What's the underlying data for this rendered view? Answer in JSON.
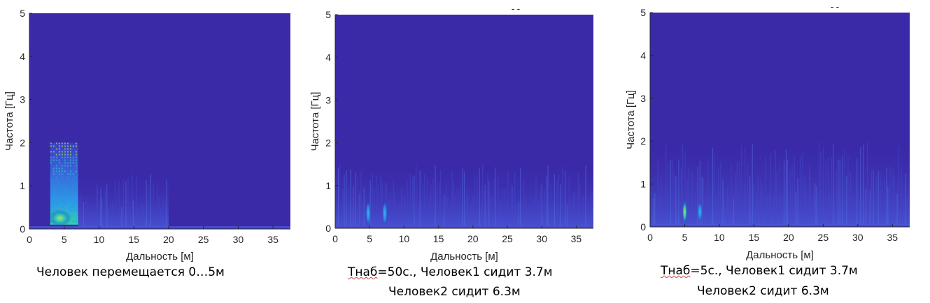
{
  "chart_data": [
    {
      "type": "heatmap",
      "xlabel": "Дальность [м]",
      "ylabel": "Частота [Гц]",
      "xlim": [
        0,
        37.5
      ],
      "ylim": [
        0,
        5
      ],
      "xticks": [
        "0",
        "5",
        "10",
        "15",
        "20",
        "25",
        "30",
        "35"
      ],
      "yticks": [
        "0",
        "1",
        "2",
        "3",
        "4",
        "5"
      ],
      "colors": {
        "background": "#3a2aa8",
        "low": "#3e3dc4",
        "mid": "#2a7ee6",
        "high": "#1ec6c8",
        "peak": "#b6e24a"
      },
      "hot_regions": [
        {
          "x_range": [
            3,
            7
          ],
          "y_range": [
            0.1,
            2.0
          ],
          "level": "high"
        },
        {
          "x_range": [
            7,
            20
          ],
          "y_range": [
            0.05,
            1.3
          ],
          "level": "low"
        }
      ]
    },
    {
      "type": "heatmap",
      "xlabel": "Дальность [м]",
      "ylabel": "Частота [Гц]",
      "xlim": [
        0,
        37.5
      ],
      "ylim": [
        0,
        5
      ],
      "xticks": [
        "0",
        "5",
        "10",
        "15",
        "20",
        "25",
        "30",
        "35"
      ],
      "yticks": [
        "0",
        "1",
        "2",
        "3",
        "4",
        "5"
      ],
      "top_mark": "- -",
      "colors": {
        "background": "#3a2aa8",
        "low": "#3e3dc4",
        "mid": "#2a7ee6",
        "high": "#1ec6c8",
        "peak": "#b6e24a"
      },
      "hot_regions": [
        {
          "x_range": [
            0,
            37.5
          ],
          "y_range": [
            0.05,
            1.5
          ],
          "level": "low"
        },
        {
          "x_range": [
            4.6,
            5.0
          ],
          "y_range": [
            0.1,
            0.7
          ],
          "level": "mid"
        },
        {
          "x_range": [
            7.0,
            7.4
          ],
          "y_range": [
            0.1,
            0.7
          ],
          "level": "mid"
        }
      ]
    },
    {
      "type": "heatmap",
      "xlabel": "Дальность [м]",
      "ylabel": "Частота [Гц]",
      "xlim": [
        0,
        37.5
      ],
      "ylim": [
        0,
        5
      ],
      "xticks": [
        "0",
        "5",
        "10",
        "15",
        "20",
        "25",
        "30",
        "35"
      ],
      "yticks": [
        "0",
        "1",
        "2",
        "3",
        "4",
        "5"
      ],
      "top_mark": "- -",
      "colors": {
        "background": "#3a2aa8",
        "low": "#3e3dc4",
        "mid": "#2a7ee6",
        "high": "#1ec6c8",
        "peak": "#b6e24a"
      },
      "hot_regions": [
        {
          "x_range": [
            0,
            37.5
          ],
          "y_range": [
            0.05,
            2.0
          ],
          "level": "low"
        },
        {
          "x_range": [
            4.8,
            5.2
          ],
          "y_range": [
            0.1,
            0.7
          ],
          "level": "high"
        },
        {
          "x_range": [
            7.0,
            7.4
          ],
          "y_range": [
            0.1,
            0.6
          ],
          "level": "mid"
        }
      ]
    }
  ],
  "captions": {
    "panel1": "Человек перемещается 0…5м",
    "panel2_line1_a": "Тнаб",
    "panel2_line1_b": "=50с., Человек1 сидит 3.7м",
    "panel2_line2": "Человек2 сидит 6.3м",
    "panel3_line1_a": "Тнаб",
    "panel3_line1_b": "=5с., Человек1 сидит 3.7м",
    "panel3_line2": "Человек2 сидит 6.3м"
  }
}
